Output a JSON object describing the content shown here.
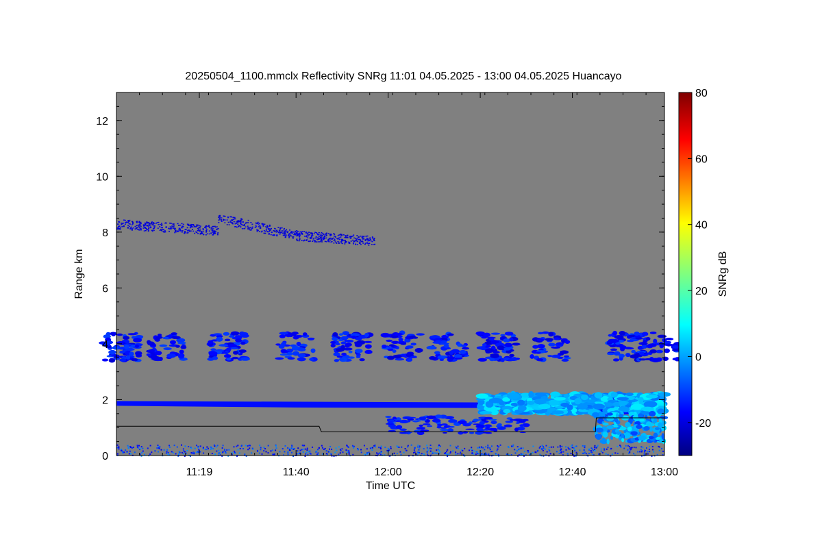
{
  "chart_data": {
    "type": "heatmap",
    "title": "20250504_1100.mmclx Reflectivity SNRg   11:01 04.05.2025 - 13:00 04.05.2025 Huancayo",
    "xlabel": "Time UTC",
    "ylabel": "Range km",
    "colorbar_label": "SNRg dB",
    "x_range_minutes": [
      661,
      780
    ],
    "x_ticks": [
      {
        "label": "11:19",
        "minute": 679
      },
      {
        "label": "11:40",
        "minute": 700
      },
      {
        "label": "12:00",
        "minute": 720
      },
      {
        "label": "12:20",
        "minute": 740
      },
      {
        "label": "12:40",
        "minute": 760
      },
      {
        "label": "13:00",
        "minute": 780
      }
    ],
    "y_range_km": [
      0,
      13
    ],
    "y_ticks": [
      0,
      2,
      4,
      6,
      8,
      10,
      12
    ],
    "colorbar_range_db": [
      -30,
      80
    ],
    "colorbar_ticks": [
      -20,
      0,
      20,
      40,
      60,
      80
    ],
    "background_color": "#808080",
    "colormap": "jet",
    "cloud_layers": [
      {
        "name": "cirrus",
        "range_km": [
          7.6,
          8.6
        ],
        "start_minute": 661,
        "end_minute": 717,
        "snr_db": -20
      },
      {
        "name": "mid-level patches",
        "range_km": [
          3.2,
          4.4
        ],
        "start_minute": 661,
        "end_minute": 780,
        "snr_db": -15
      },
      {
        "name": "low stratus",
        "range_km": [
          1.0,
          2.2
        ],
        "start_minute": 661,
        "end_minute": 780,
        "snr_db": 0
      },
      {
        "name": "near-surface clutter",
        "range_km": [
          0.0,
          0.4
        ],
        "start_minute": 661,
        "end_minute": 780,
        "snr_db": -10
      }
    ],
    "cloud_base_line": [
      {
        "minute": 661,
        "km": 1.05
      },
      {
        "minute": 705,
        "km": 1.05
      },
      {
        "minute": 705.5,
        "km": 0.85
      },
      {
        "minute": 765,
        "km": 0.85
      },
      {
        "minute": 765.2,
        "km": 1.35
      },
      {
        "minute": 780,
        "km": 1.35
      }
    ]
  }
}
